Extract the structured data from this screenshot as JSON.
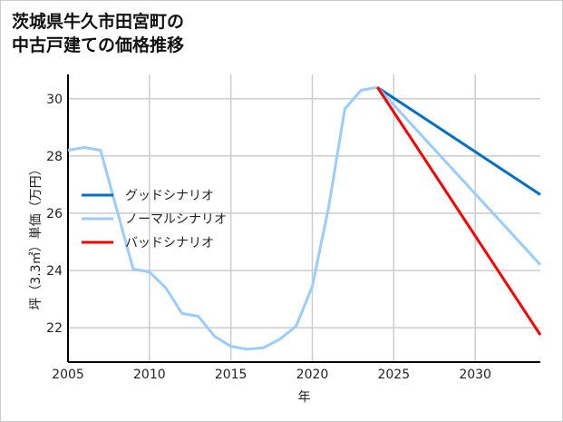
{
  "chart_data": {
    "type": "line",
    "title_lines": [
      "茨城県牛久市田宮町の",
      "中古戸建ての価格推移"
    ],
    "xlabel": "年",
    "ylabel": "坪（3.3㎡）単価（万円）",
    "xlim": [
      2005,
      2034
    ],
    "ylim": [
      20.8,
      30.85
    ],
    "xticks": [
      2005,
      2010,
      2015,
      2020,
      2025,
      2030
    ],
    "yticks": [
      22,
      24,
      26,
      28,
      30
    ],
    "grid": true,
    "legend": "center-left",
    "series": [
      {
        "name": "グッドシナリオ",
        "color": "#0070c8",
        "x": [
          2024,
          2034
        ],
        "y": [
          30.4,
          26.65
        ]
      },
      {
        "name": "ノーマルシナリオ",
        "color": "#99ccff",
        "x": [
          2005,
          2006,
          2007,
          2009,
          2010,
          2011,
          2012,
          2013,
          2014,
          2015,
          2016,
          2017,
          2018,
          2019,
          2020,
          2021,
          2022,
          2023,
          2024,
          2034
        ],
        "y": [
          28.2,
          28.3,
          28.2,
          24.05,
          23.95,
          23.4,
          22.5,
          22.4,
          21.7,
          21.35,
          21.25,
          21.3,
          21.6,
          22.05,
          23.45,
          26.2,
          29.65,
          30.3,
          30.4,
          24.2
        ]
      },
      {
        "name": "バッドシナリオ",
        "color": "#ff0000",
        "x": [
          2024,
          2034
        ],
        "y": [
          30.4,
          21.75
        ]
      }
    ]
  }
}
